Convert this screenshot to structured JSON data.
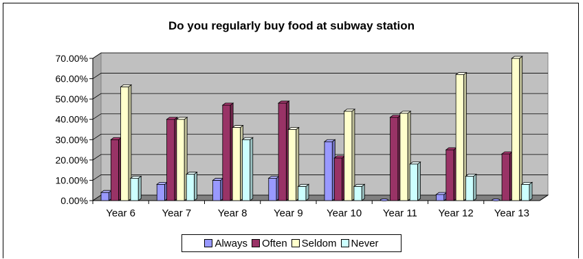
{
  "chart_data": {
    "type": "bar",
    "title": "Do you regularly buy food at subway station",
    "categories": [
      "Year 6",
      "Year 7",
      "Year 8",
      "Year 9",
      "Year 10",
      "Year 11",
      "Year 12",
      "Year 13"
    ],
    "yticks": [
      "0.00%",
      "10.00%",
      "20.00%",
      "30.00%",
      "40.00%",
      "50.00%",
      "60.00%",
      "70.00%"
    ],
    "ylim": [
      0,
      70
    ],
    "grid": true,
    "legend_position": "bottom",
    "series": [
      {
        "name": "Always",
        "color": "#9999ff",
        "values": [
          4,
          8,
          10,
          11,
          29,
          0,
          3,
          0
        ]
      },
      {
        "name": "Often",
        "color": "#993366",
        "values": [
          30,
          40,
          47,
          48,
          21,
          41,
          25,
          23
        ]
      },
      {
        "name": "Seldom",
        "color": "#ffffcc",
        "values": [
          56,
          40,
          36,
          35,
          44,
          43,
          62,
          70
        ]
      },
      {
        "name": "Never",
        "color": "#ccffff",
        "values": [
          11,
          13,
          30,
          7,
          7,
          18,
          12,
          8
        ]
      }
    ]
  }
}
